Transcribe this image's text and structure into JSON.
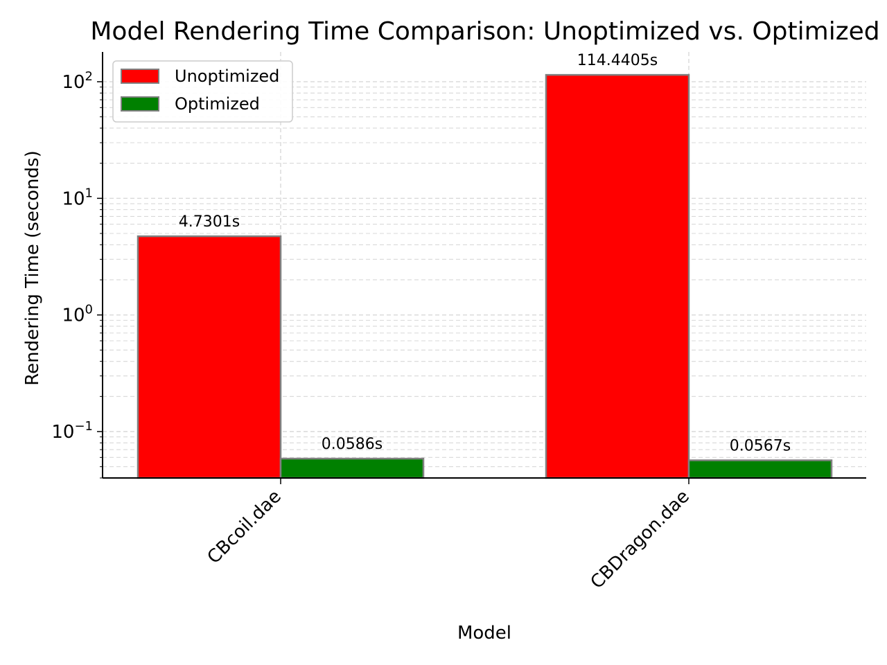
{
  "chart_data": {
    "type": "bar",
    "title": "Model Rendering Time Comparison: Unoptimized vs. Optimized",
    "xlabel": "Model",
    "ylabel": "Rendering Time (seconds)",
    "y_scale": "log",
    "ylim": [
      0.04,
      180
    ],
    "categories": [
      "CBcoil.dae",
      "CBDragon.dae"
    ],
    "series": [
      {
        "name": "Unoptimized",
        "values": [
          4.7301,
          114.4405
        ],
        "labels": [
          "4.7301s",
          "114.4405s"
        ],
        "color": "#ff0000"
      },
      {
        "name": "Optimized",
        "values": [
          0.0586,
          0.0567
        ],
        "labels": [
          "0.0586s",
          "0.0567s"
        ],
        "color": "#008000"
      }
    ],
    "y_ticks": [
      {
        "value": 0.1,
        "base": "10",
        "exp": "−1"
      },
      {
        "value": 1,
        "base": "10",
        "exp": "0"
      },
      {
        "value": 10,
        "base": "10",
        "exp": "1"
      },
      {
        "value": 100,
        "base": "10",
        "exp": "2"
      }
    ],
    "grid": true,
    "legend": "top-left",
    "bar_edge_color": "#808080"
  }
}
